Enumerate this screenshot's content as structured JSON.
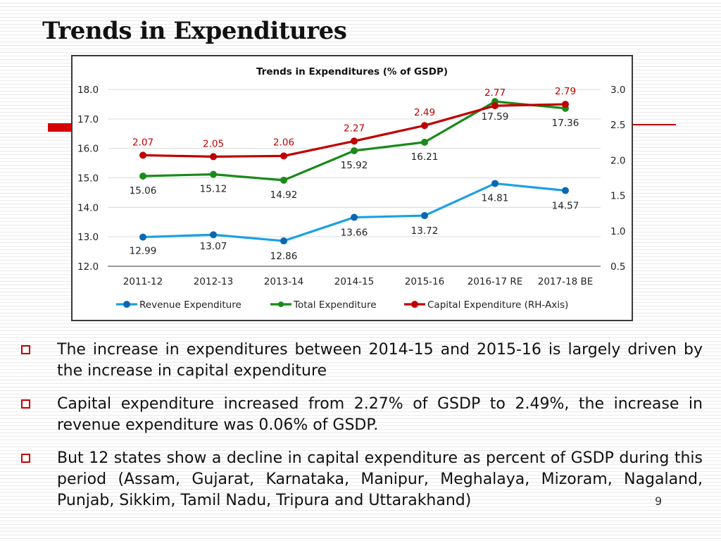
{
  "slide": {
    "title": "Trends in Expenditures",
    "page_number": "9",
    "bullets": [
      "The increase in expenditures between 2014-15 and 2015-16 is largely driven by the increase in capital expenditure",
      "Capital expenditure increased from 2.27% of GSDP to 2.49%, the increase in revenue expenditure was 0.06% of GSDP.",
      "But 12 states show a decline in capital expenditure as percent of GSDP during this period (Assam, Gujarat, Karnataka, Manipur, Meghalaya, Mizoram, Nagaland, Punjab, Sikkim, Tamil Nadu, Tripura and Uttarakhand)"
    ]
  },
  "chart_data": {
    "type": "line",
    "title": "Trends in Expenditures (% of GSDP)",
    "categories": [
      "2011-12",
      "2012-13",
      "2013-14",
      "2014-15",
      "2015-16",
      "2016-17 RE",
      "2017-18 BE"
    ],
    "left_axis": {
      "min": 12.0,
      "max": 18.0,
      "ticks": [
        "12.0",
        "13.0",
        "14.0",
        "15.0",
        "16.0",
        "17.0",
        "18.0"
      ]
    },
    "right_axis": {
      "min": 0.5,
      "max": 3.0,
      "ticks": [
        "0.5",
        "1.0",
        "1.5",
        "2.0",
        "2.5",
        "3.0"
      ]
    },
    "grid": true,
    "legend_position": "bottom",
    "series": [
      {
        "name": "Revenue Expenditure",
        "axis": "left",
        "color": "#1ba1e2",
        "marker_color": "#0b68b0",
        "values": [
          12.99,
          13.07,
          12.86,
          13.66,
          13.72,
          14.81,
          14.57
        ],
        "labels": [
          "12.99",
          "13.07",
          "12.86",
          "13.66",
          "13.72",
          "14.81",
          "14.57"
        ]
      },
      {
        "name": "Total Expenditure",
        "axis": "left",
        "color": "#1a8a1a",
        "marker_color": "#1a8a1a",
        "values": [
          15.06,
          15.12,
          14.92,
          15.92,
          16.21,
          17.59,
          17.36
        ],
        "labels": [
          "15.06",
          "15.12",
          "14.92",
          "15.92",
          "16.21",
          "17.59",
          "17.36"
        ]
      },
      {
        "name": "Capital Expenditure (RH-Axis)",
        "axis": "right",
        "color": "#c00000",
        "marker_color": "#c00000",
        "values": [
          2.07,
          2.05,
          2.06,
          2.27,
          2.49,
          2.77,
          2.79
        ],
        "labels": [
          "2.07",
          "2.05",
          "2.06",
          "2.27",
          "2.49",
          "2.77",
          "2.79"
        ]
      }
    ]
  }
}
